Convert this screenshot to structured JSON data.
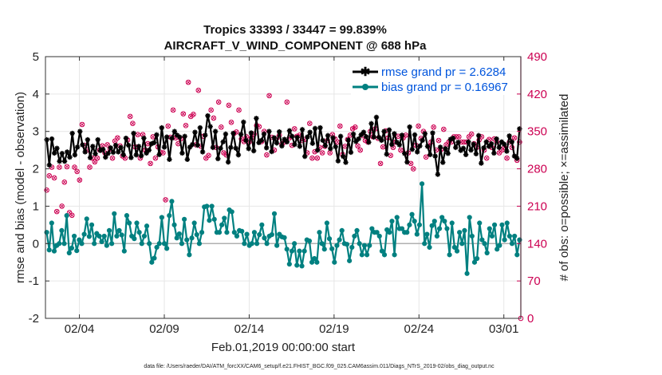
{
  "chart_data": {
    "type": "line",
    "title": "Tropics 33393 / 33447 = 99.839%",
    "subtitle": "AIRCRAFT_V_WIND_COMPONENT @ 688 hPa",
    "xlabel": "Feb.01,2019 00:00:00 start",
    "ylabel": "rmse and bias (model - observation)",
    "y2label": "# of obs: o=possible; ×=assimilated",
    "footnote": "data file: /Users/raeder/DAI/ATM_forcXX/CAM6_setup/f.e21.FHIST_BGC.f09_025.CAM6assim.011/Diags_NTrS_2019-02/obs_diag_output.nc",
    "xlim": [
      1.0,
      29.0
    ],
    "ylim": [
      -2,
      5
    ],
    "y2lim": [
      0,
      490
    ],
    "x_ticks": [
      3,
      8,
      13,
      18,
      23,
      28
    ],
    "x_tick_labels": [
      "02/04",
      "02/09",
      "02/14",
      "02/19",
      "02/24",
      "03/01"
    ],
    "y_ticks": [
      -2,
      -1,
      0,
      1,
      2,
      3,
      4,
      5
    ],
    "y_tick_labels": [
      "-2",
      "-1",
      "0",
      "1",
      "2",
      "3",
      "4",
      "5"
    ],
    "y2_ticks": [
      0,
      70,
      140,
      210,
      280,
      350,
      420,
      490
    ],
    "y2_tick_labels": [
      "0",
      "70",
      "140",
      "210",
      "280",
      "350",
      "420",
      "490"
    ],
    "grid": true,
    "legend_position": "top-right",
    "colors": {
      "rmse": "#000000",
      "bias": "#008080",
      "obs": "#cc0052",
      "legend_text": "#0055dd",
      "right_axis": "#cc0052",
      "zero_line": "#b0b0b0"
    },
    "series": [
      {
        "name": "rmse grand pr = 2.6284",
        "values": [
          2.78,
          2.1,
          2.8,
          2.42,
          2.55,
          2.2,
          2.41,
          2.2,
          2.45,
          2.31,
          2.95,
          2.37,
          2.58,
          3.0,
          2.64,
          2.45,
          2.78,
          2.3,
          2.6,
          2.4,
          2.78,
          2.49,
          2.52,
          2.31,
          2.41,
          2.56,
          2.44,
          2.63,
          2.45,
          2.57,
          2.37,
          2.82,
          2.63,
          2.3,
          2.95,
          2.37,
          2.6,
          2.35,
          2.82,
          2.42,
          2.5,
          2.67,
          2.7,
          2.91,
          2.38,
          3.1,
          2.58,
          2.85,
          2.25,
          2.82,
          3.0,
          2.9,
          2.85,
          2.42,
          2.87,
          2.25,
          2.58,
          2.65,
          2.98,
          2.63,
          3.1,
          2.45,
          2.9,
          3.42,
          3.13,
          2.57,
          3.0,
          2.27,
          2.55,
          2.72,
          2.93,
          2.18,
          2.57,
          2.95,
          2.55,
          2.37,
          2.92,
          3.25,
          2.76,
          2.54,
          2.96,
          2.48,
          3.35,
          2.7,
          2.76,
          2.93,
          2.56,
          3.0,
          2.46,
          2.83,
          2.69,
          2.99,
          2.61,
          2.79,
          2.72,
          3.02,
          2.87,
          2.65,
          2.84,
          2.6,
          3.05,
          2.33,
          2.85,
          2.98,
          2.68,
          3.08,
          2.5,
          3.1,
          2.76,
          2.62,
          2.89,
          2.54,
          2.83,
          2.59,
          2.21,
          2.87,
          2.33,
          2.17,
          2.77,
          2.44,
          2.93,
          2.73,
          2.8,
          2.91,
          2.98,
          2.86,
          2.71,
          3.21,
          2.85,
          3.38,
          2.84,
          2.76,
          3.0,
          2.39,
          3.04,
          2.65,
          2.94,
          2.71,
          2.64,
          2.9,
          2.41,
          2.18,
          3.12,
          2.52,
          2.91,
          2.45,
          2.61,
          2.76,
          2.94,
          2.6,
          2.38,
          2.96,
          2.34,
          1.85,
          2.58,
          2.17,
          2.54,
          2.41,
          2.79,
          2.82,
          2.57,
          2.71,
          2.49,
          2.55,
          2.38,
          2.72,
          2.5,
          2.66,
          2.4,
          2.89,
          2.15,
          2.56,
          2.72,
          2.6,
          2.67,
          2.42,
          2.8,
          2.57,
          2.72,
          2.66,
          2.47,
          2.88,
          2.72,
          2.34,
          2.28,
          3.07
        ],
        "color": "#000000",
        "marker": "star"
      },
      {
        "name": "bias grand pr = 0.16967",
        "values": [
          0.3,
          -0.17,
          0.55,
          -0.2,
          -0.05,
          0.0,
          0.35,
          0.0,
          0.75,
          -0.25,
          -0.12,
          0.2,
          -0.19,
          0.1,
          0.0,
          0.25,
          0.66,
          0.19,
          0.5,
          0.0,
          0.27,
          0.2,
          0.05,
          0.2,
          -0.05,
          0.35,
          0.0,
          0.8,
          0.2,
          0.35,
          0.23,
          -0.2,
          0.75,
          0.55,
          0.2,
          0.13,
          0.55,
          0.3,
          0.0,
          0.2,
          0.47,
          0.0,
          -0.5,
          -0.39,
          -0.1,
          0.0,
          0.7,
          0.0,
          -0.13,
          0.75,
          1.13,
          0.5,
          0.15,
          0.26,
          0.0,
          0.65,
          0.1,
          -0.3,
          0.15,
          0.55,
          0.24,
          0.0,
          0.3,
          0.98,
          1.0,
          0.62,
          1.0,
          0.65,
          0.3,
          0.3,
          0.5,
          0.68,
          0.3,
          0.9,
          0.85,
          0.3,
          0.2,
          0.35,
          0.33,
          0.0,
          0.25,
          -0.05,
          0.0,
          0.3,
          0.0,
          0.24,
          0.5,
          0.15,
          0.0,
          0.2,
          0.24,
          0.8,
          -0.05,
          0.25,
          0.18,
          0.16,
          -0.15,
          -0.55,
          -0.2,
          0.0,
          -0.58,
          -0.2,
          -0.6,
          -0.2,
          0.1,
          0.07,
          -0.5,
          -0.4,
          -0.5,
          0.3,
          0.0,
          -0.15,
          0.55,
          0.13,
          -0.14,
          -0.5,
          -0.05,
          0.1,
          0.35,
          0.0,
          -0.02,
          -0.46,
          -0.1,
          0.2,
          0.35,
          0.0,
          -0.3,
          -0.05,
          -0.3,
          -0.05,
          0.4,
          0.3,
          0.3,
          0.2,
          -0.2,
          -0.3,
          0.37,
          0.3,
          0.6,
          -0.3,
          0.7,
          0.4,
          0.4,
          0.3,
          0.3,
          0.5,
          0.78,
          0.6,
          0.25,
          0.5,
          1.6,
          0.0,
          0.25,
          -0.1,
          0.48,
          0.6,
          0.2,
          0.4,
          0.7,
          0.6,
          0.4,
          -0.3,
          0.55,
          -0.1,
          -0.2,
          0.3,
          0.0,
          0.35,
          -0.8,
          0.7,
          0.2,
          -0.5,
          -0.4,
          0.55,
          0.1,
          0.0,
          -0.25,
          0.4,
          0.2,
          0.5,
          -0.15,
          -0.05,
          0.5,
          0.1,
          0.55,
          0.2,
          0.0,
          0.2,
          -0.3,
          0.1
        ],
        "color": "#008080",
        "marker": "circle"
      }
    ],
    "obs_counts": {
      "name": "# of obs (right axis)",
      "values": [
        240,
        267,
        283,
        263,
        200,
        283,
        210,
        255,
        284,
        198,
        193,
        283,
        275,
        259,
        363,
        324,
        315,
        283,
        300,
        293,
        300,
        315,
        323,
        310,
        325,
        317,
        300,
        332,
        338,
        323,
        304,
        300,
        334,
        378,
        365,
        321,
        344,
        300,
        344,
        315,
        327,
        290,
        340,
        300,
        321,
        311,
        310,
        222,
        360,
        339,
        390,
        338,
        327,
        336,
        383,
        361,
        442,
        378,
        382,
        325,
        427,
        322,
        341,
        300,
        305,
        390,
        375,
        320,
        405,
        358,
        310,
        306,
        399,
        367,
        346,
        349,
        390,
        336,
        331,
        340,
        330,
        338,
        345,
        361,
        359,
        331,
        350,
        306,
        417,
        339,
        315,
        337,
        343,
        326,
        330,
        405,
        338,
        324,
        355,
        341,
        343,
        333,
        335,
        310,
        365,
        300,
        312,
        300,
        320,
        310,
        322,
        333,
        310,
        344,
        336,
        330,
        360,
        307,
        322,
        335,
        343,
        355,
        358,
        323,
        315,
        342,
        333,
        330,
        350,
        340,
        355,
        337,
        290,
        321,
        351,
        338,
        305,
        320,
        330,
        341,
        315,
        338,
        343,
        310,
        290,
        280,
        324,
        360,
        337,
        350,
        302,
        322,
        330,
        358,
        315,
        333,
        316,
        354,
        325,
        330,
        330,
        340,
        340,
        340,
        330,
        330,
        330,
        340,
        345,
        327,
        320,
        334,
        340,
        315,
        300,
        335,
        320,
        336,
        330,
        310,
        315,
        320,
        300,
        330,
        320,
        338,
        296,
        330
      ]
    }
  }
}
